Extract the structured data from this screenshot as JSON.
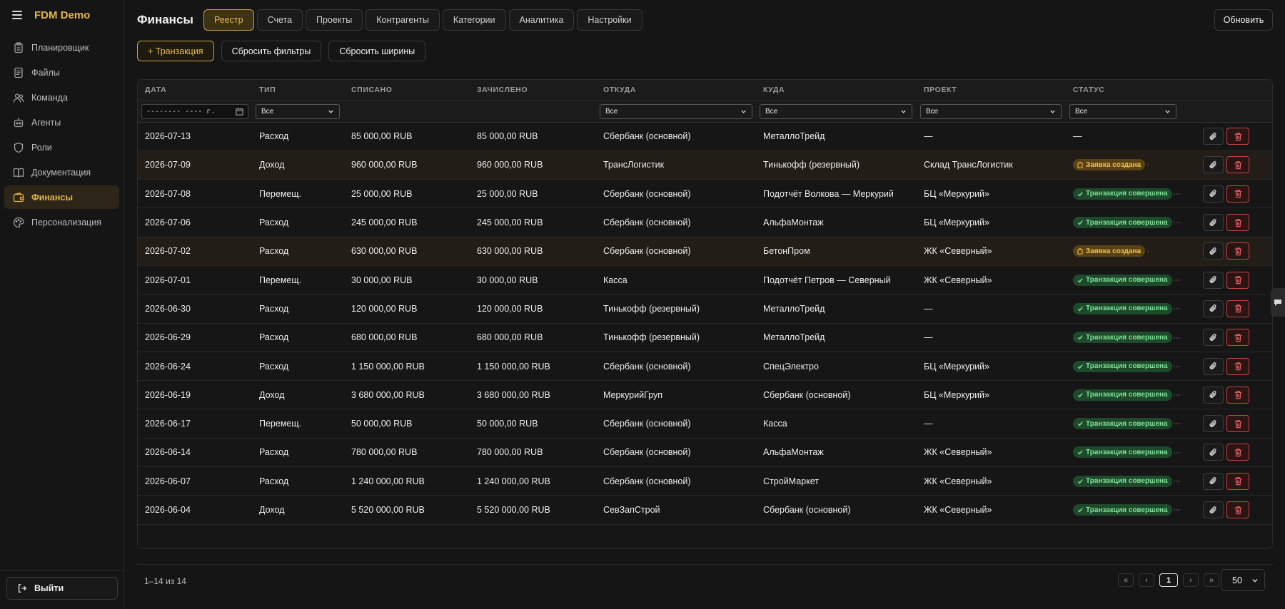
{
  "app": {
    "brand": "FDM Demo"
  },
  "sidebar": {
    "items": [
      {
        "label": "Планировщик",
        "icon": "clipboard-icon",
        "active": false
      },
      {
        "label": "Файлы",
        "icon": "file-icon",
        "active": false
      },
      {
        "label": "Команда",
        "icon": "users-icon",
        "active": false
      },
      {
        "label": "Агенты",
        "icon": "robot-icon",
        "active": false
      },
      {
        "label": "Роли",
        "icon": "shield-icon",
        "active": false
      },
      {
        "label": "Документация",
        "icon": "book-icon",
        "active": false
      },
      {
        "label": "Финансы",
        "icon": "wallet-icon",
        "active": true
      },
      {
        "label": "Персонализация",
        "icon": "palette-icon",
        "active": false
      }
    ],
    "logout_label": "Выйти"
  },
  "header": {
    "title": "Финансы",
    "tabs": [
      "Реестр",
      "Счета",
      "Проекты",
      "Контрагенты",
      "Категории",
      "Аналитика",
      "Настройки"
    ],
    "active_tab": "Реестр",
    "refresh_label": "Обновить"
  },
  "toolbar": {
    "add_label": "+ Транзакция",
    "reset_filters_label": "Сбросить фильтры",
    "reset_widths_label": "Сбросить ширины"
  },
  "table": {
    "columns": [
      "ДАТА",
      "ТИП",
      "СПИСАНО",
      "ЗАЧИСЛЕНО",
      "ОТКУДА",
      "КУДА",
      "ПРОЕКТ",
      "СТАТУС"
    ],
    "filters": {
      "date_placeholder": "-------- ---- г.",
      "type": "Все",
      "from": "Все",
      "to": "Все",
      "project": "Все",
      "status": "Все"
    },
    "rows": [
      {
        "date": "2026-07-13",
        "type": "Расход",
        "kind": "exp",
        "debit": "85 000,00 RUB",
        "credit": "85 000,00 RUB",
        "from": "Сбербанк (основной)",
        "to": "МеталлоТрейд",
        "project": "—",
        "status": "—",
        "status_kind": "none",
        "hl": false
      },
      {
        "date": "2026-07-09",
        "type": "Доход",
        "kind": "inc",
        "debit": "960 000,00 RUB",
        "credit": "960 000,00 RUB",
        "from": "ТрансЛогистик",
        "to": "Тинькофф (резервный)",
        "project": "Склад ТрансЛогистик",
        "status": "Заявка создана",
        "status_kind": "req",
        "hl": true
      },
      {
        "date": "2026-07-08",
        "type": "Перемещ.",
        "kind": "mov",
        "debit": "25 000,00 RUB",
        "credit": "25 000,00 RUB",
        "from": "Сбербанк (основной)",
        "to": "Подотчёт Волкова — Меркурий",
        "project": "БЦ «Меркурий»",
        "status": "Транзакция совершена",
        "status_kind": "done",
        "hl": false
      },
      {
        "date": "2026-07-06",
        "type": "Расход",
        "kind": "exp",
        "debit": "245 000,00 RUB",
        "credit": "245 000,00 RUB",
        "from": "Сбербанк (основной)",
        "to": "АльфаМонтаж",
        "project": "БЦ «Меркурий»",
        "status": "Транзакция совершена",
        "status_kind": "done",
        "hl": false
      },
      {
        "date": "2026-07-02",
        "type": "Расход",
        "kind": "exp",
        "debit": "630 000,00 RUB",
        "credit": "630 000,00 RUB",
        "from": "Сбербанк (основной)",
        "to": "БетонПром",
        "project": "ЖК «Северный»",
        "status": "Заявка создана",
        "status_kind": "req",
        "hl": true
      },
      {
        "date": "2026-07-01",
        "type": "Перемещ.",
        "kind": "mov",
        "debit": "30 000,00 RUB",
        "credit": "30 000,00 RUB",
        "from": "Касса",
        "to": "Подотчёт Петров — Северный",
        "project": "ЖК «Северный»",
        "status": "Транзакция совершена",
        "status_kind": "done",
        "hl": false
      },
      {
        "date": "2026-06-30",
        "type": "Расход",
        "kind": "exp",
        "debit": "120 000,00 RUB",
        "credit": "120 000,00 RUB",
        "from": "Тинькофф (резервный)",
        "to": "МеталлоТрейд",
        "project": "—",
        "status": "Транзакция совершена",
        "status_kind": "done",
        "hl": false
      },
      {
        "date": "2026-06-29",
        "type": "Расход",
        "kind": "exp",
        "debit": "680 000,00 RUB",
        "credit": "680 000,00 RUB",
        "from": "Тинькофф (резервный)",
        "to": "МеталлоТрейд",
        "project": "—",
        "status": "Транзакция совершена",
        "status_kind": "done",
        "hl": false
      },
      {
        "date": "2026-06-24",
        "type": "Расход",
        "kind": "exp",
        "debit": "1 150 000,00 RUB",
        "credit": "1 150 000,00 RUB",
        "from": "Сбербанк (основной)",
        "to": "СпецЭлектро",
        "project": "БЦ «Меркурий»",
        "status": "Транзакция совершена",
        "status_kind": "done",
        "hl": false
      },
      {
        "date": "2026-06-19",
        "type": "Доход",
        "kind": "inc",
        "debit": "3 680 000,00 RUB",
        "credit": "3 680 000,00 RUB",
        "from": "МеркурийГруп",
        "to": "Сбербанк (основной)",
        "project": "БЦ «Меркурий»",
        "status": "Транзакция совершена",
        "status_kind": "done",
        "hl": false
      },
      {
        "date": "2026-06-17",
        "type": "Перемещ.",
        "kind": "mov",
        "debit": "50 000,00 RUB",
        "credit": "50 000,00 RUB",
        "from": "Сбербанк (основной)",
        "to": "Касса",
        "project": "—",
        "status": "Транзакция совершена",
        "status_kind": "done",
        "hl": false
      },
      {
        "date": "2026-06-14",
        "type": "Расход",
        "kind": "exp",
        "debit": "780 000,00 RUB",
        "credit": "780 000,00 RUB",
        "from": "Сбербанк (основной)",
        "to": "АльфаМонтаж",
        "project": "ЖК «Северный»",
        "status": "Транзакция совершена",
        "status_kind": "done",
        "hl": false
      },
      {
        "date": "2026-06-07",
        "type": "Расход",
        "kind": "exp",
        "debit": "1 240 000,00 RUB",
        "credit": "1 240 000,00 RUB",
        "from": "Сбербанк (основной)",
        "to": "СтройМаркет",
        "project": "ЖК «Северный»",
        "status": "Транзакция совершена",
        "status_kind": "done",
        "hl": false
      },
      {
        "date": "2026-06-04",
        "type": "Доход",
        "kind": "inc",
        "debit": "5 520 000,00 RUB",
        "credit": "5 520 000,00 RUB",
        "from": "СевЗапСтрой",
        "to": "Сбербанк (основной)",
        "project": "ЖК «Северный»",
        "status": "Транзакция совершена",
        "status_kind": "done",
        "hl": false
      }
    ]
  },
  "pagination": {
    "summary": "1–14 из 14",
    "first": "«",
    "prev": "‹",
    "current": "1",
    "next": "›",
    "last": "»",
    "per_page": "50"
  },
  "colors": {
    "accent": "#e3b54a",
    "expense": "#e35d5d",
    "income": "#4cc46d",
    "transfer": "#5a9de6",
    "status_done": "#7fe09a",
    "status_request": "#f0c24e"
  }
}
